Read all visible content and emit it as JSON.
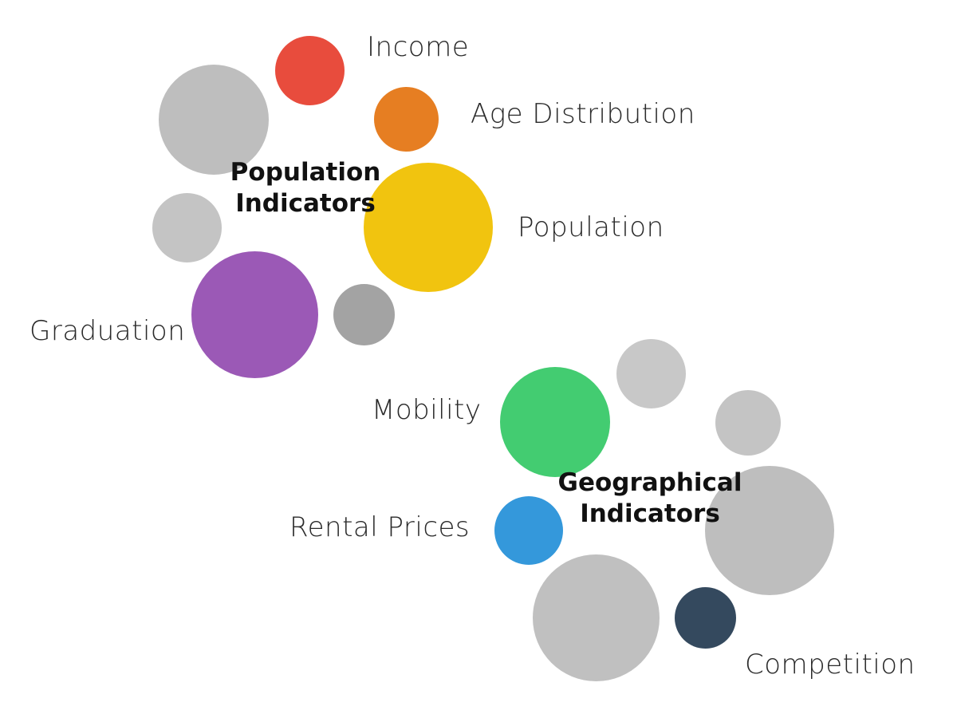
{
  "groups": [
    {
      "title_lines": [
        "Population",
        "Indicators"
      ],
      "indicators": [
        {
          "label": "Income",
          "color": "#e84c3d"
        },
        {
          "label": "Age Distribution",
          "color": "#e67e22"
        },
        {
          "label": "Population",
          "color": "#f1c40f"
        },
        {
          "label": "Graduation",
          "color": "#9b59b6"
        }
      ],
      "placeholder_colors": [
        "#bebebe",
        "#c4c4c4",
        "#a3a3a3"
      ]
    },
    {
      "title_lines": [
        "Geographical",
        "Indicators"
      ],
      "indicators": [
        {
          "label": "Mobility",
          "color": "#43cc71"
        },
        {
          "label": "Rental Prices",
          "color": "#3498db"
        },
        {
          "label": "Competition",
          "color": "#34495e"
        }
      ],
      "placeholder_colors": [
        "#c8c8c8",
        "#c4c4c4",
        "#bebebe",
        "#c0c0c0"
      ]
    }
  ]
}
